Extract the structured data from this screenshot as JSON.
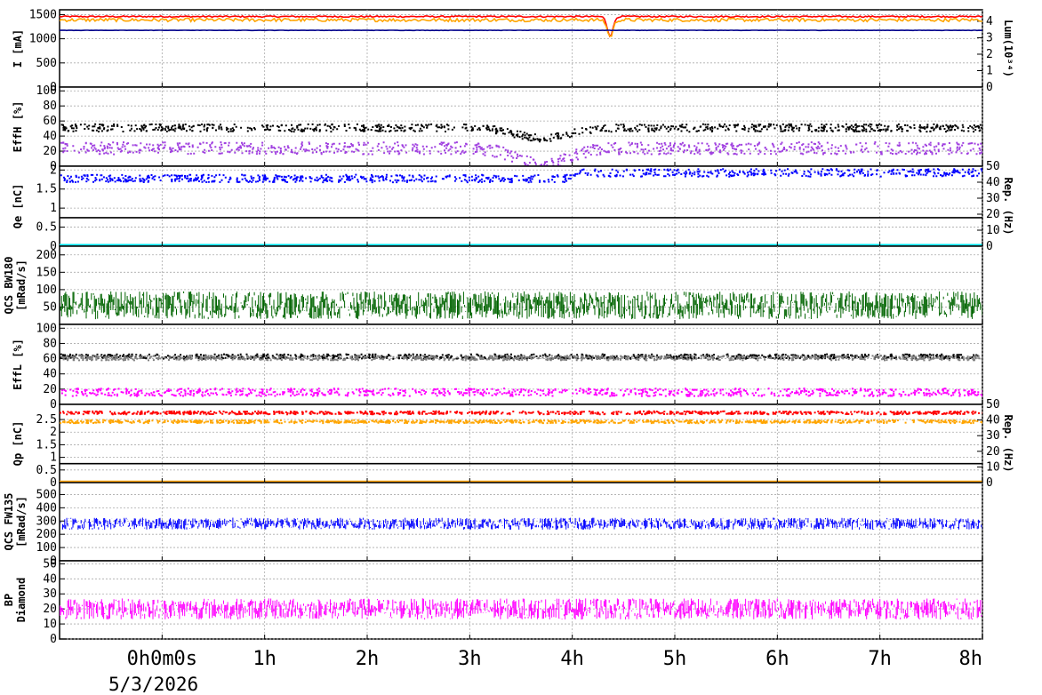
{
  "chart_data": {
    "type": "line",
    "time_axis": {
      "range_hours": [
        -1,
        8
      ],
      "ticks": [
        {
          "hour": 0,
          "label": "0h0m0s"
        },
        {
          "hour": 1,
          "label": "1h"
        },
        {
          "hour": 2,
          "label": "2h"
        },
        {
          "hour": 3,
          "label": "3h"
        },
        {
          "hour": 4,
          "label": "4h"
        },
        {
          "hour": 5,
          "label": "5h"
        },
        {
          "hour": 6,
          "label": "6h"
        },
        {
          "hour": 7,
          "label": "7h"
        },
        {
          "hour": 8,
          "label": "8h"
        }
      ],
      "date": "5/3/2026"
    },
    "grid": true,
    "panels": [
      {
        "id": "current",
        "ylabel": "I [mA]",
        "ylim": [
          0,
          1600
        ],
        "yticks": [
          0,
          500,
          1000,
          1500
        ],
        "ylabel_right": "Lum(10³⁴)",
        "ylim_right": [
          0,
          4.7
        ],
        "yticks_right": [
          0,
          1,
          2,
          3,
          4
        ],
        "series": [
          {
            "color": "#ff0000",
            "style": "line",
            "base": 1460,
            "noise": 15,
            "dip_at": 4.37,
            "dip_depth": 400
          },
          {
            "color": "#ffa500",
            "style": "line",
            "base": 1390,
            "noise": 35,
            "dip_at": 4.37,
            "dip_depth": 350
          },
          {
            "color": "#00008b",
            "style": "line",
            "base": 1175,
            "noise": 3
          }
        ]
      },
      {
        "id": "effh",
        "ylabel": "EffH [%]",
        "ylim": [
          0,
          105
        ],
        "yticks": [
          0,
          20,
          40,
          60,
          80,
          100
        ],
        "series": [
          {
            "color": "#000000",
            "style": "scatter",
            "base": 52,
            "noise": 5,
            "trough": 38
          },
          {
            "color": "#a040e0",
            "style": "scatter",
            "base": 25,
            "noise": 8,
            "trough": 3
          }
        ]
      },
      {
        "id": "qe",
        "ylabel": "Qe [nC]",
        "ylim": [
          0,
          2.1
        ],
        "yticks": [
          0,
          0.5,
          1,
          1.5,
          2
        ],
        "ylabel_right": "Rep. (Hz)",
        "ylim_right": [
          0,
          50
        ],
        "yticks_right": [
          0,
          10,
          20,
          30,
          40,
          50
        ],
        "series": [
          {
            "color": "#0000ff",
            "style": "scatter",
            "base": 1.8,
            "noise": 0.1,
            "step_at": 4.0,
            "step_to": 1.95
          },
          {
            "color": "#000000",
            "style": "line",
            "base": 0.75,
            "noise": 0
          },
          {
            "color": "#00e5ee",
            "style": "line",
            "base": 0.04,
            "noise": 0
          }
        ]
      },
      {
        "id": "bw180",
        "ylabel": "QCS BW180",
        "ylabel2": "[mRad/s]",
        "ylim": [
          0,
          225
        ],
        "yticks": [
          50,
          100,
          150,
          200
        ],
        "series": [
          {
            "color": "#006400",
            "style": "noise",
            "base": 55,
            "noise": 40
          }
        ]
      },
      {
        "id": "effl",
        "ylabel": "EffL [%]",
        "ylim": [
          0,
          105
        ],
        "yticks": [
          0,
          20,
          40,
          60,
          80,
          100
        ],
        "series": [
          {
            "color": "#000000",
            "style": "scatter",
            "base": 64,
            "noise": 3
          },
          {
            "color": "#808080",
            "style": "scatter",
            "base": 62,
            "noise": 3
          },
          {
            "color": "#ff00ff",
            "style": "scatter",
            "base": 17,
            "noise": 5
          }
        ]
      },
      {
        "id": "qp",
        "ylabel": "Qp [nC]",
        "ylim": [
          0,
          3.1
        ],
        "yticks": [
          0,
          0.5,
          1,
          1.5,
          2,
          2.5
        ],
        "ylabel_right": "Rep. (Hz)",
        "ylim_right": [
          0,
          50
        ],
        "yticks_right": [
          0,
          10,
          20,
          30,
          40,
          50
        ],
        "series": [
          {
            "color": "#ff0000",
            "style": "scatter",
            "base": 2.8,
            "noise": 0.06
          },
          {
            "color": "#ffa500",
            "style": "scatter",
            "base": 2.45,
            "noise": 0.06
          },
          {
            "color": "#000000",
            "style": "line",
            "base": 0.75,
            "noise": 0
          },
          {
            "color": "#ffa500",
            "style": "line",
            "base": 0.05,
            "noise": 0
          }
        ]
      },
      {
        "id": "fw135",
        "ylabel": "QCS FW135",
        "ylabel2": "[mRad/s]",
        "ylim": [
          0,
          590
        ],
        "yticks": [
          0,
          100,
          200,
          300,
          400,
          500
        ],
        "series": [
          {
            "color": "#0000ff",
            "style": "noise",
            "base": 280,
            "noise": 45
          }
        ]
      },
      {
        "id": "bp",
        "ylabel": "BP",
        "ylabel2": "Diamond",
        "ylim": [
          0,
          52
        ],
        "yticks": [
          0,
          10,
          20,
          30,
          40,
          50
        ],
        "series": [
          {
            "color": "#ff00ff",
            "style": "noise",
            "base": 20,
            "noise": 7
          }
        ]
      }
    ]
  }
}
